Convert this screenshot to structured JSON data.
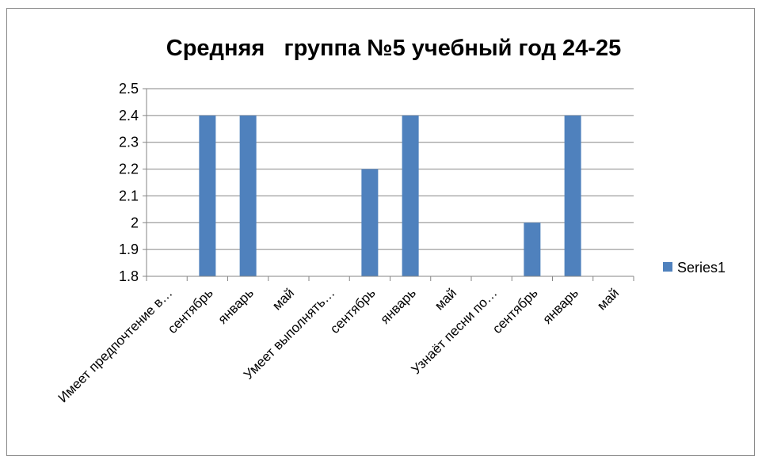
{
  "chart_data": {
    "type": "bar",
    "title": "Средняя   группа №5 учебный год 24-25",
    "categories": [
      "Имеет предпочтение в…",
      "сентябрь",
      "январь",
      "май",
      "Умеет выполнять…",
      "сентябрь",
      "январь",
      "май",
      "Узнаёт песни по…",
      "сентябрь",
      "январь",
      "май"
    ],
    "series": [
      {
        "name": "Series1",
        "values": [
          null,
          2.4,
          2.4,
          null,
          null,
          2.2,
          2.4,
          null,
          null,
          2.0,
          2.4,
          null
        ]
      }
    ],
    "ylim": [
      1.8,
      2.5
    ],
    "yticks": [
      "1.8",
      "1.9",
      "2",
      "2.1",
      "2.2",
      "2.3",
      "2.4",
      "2.5"
    ],
    "grid": true,
    "legend": "right",
    "bar_color": "#4f81bd",
    "grid_color": "#868686"
  }
}
